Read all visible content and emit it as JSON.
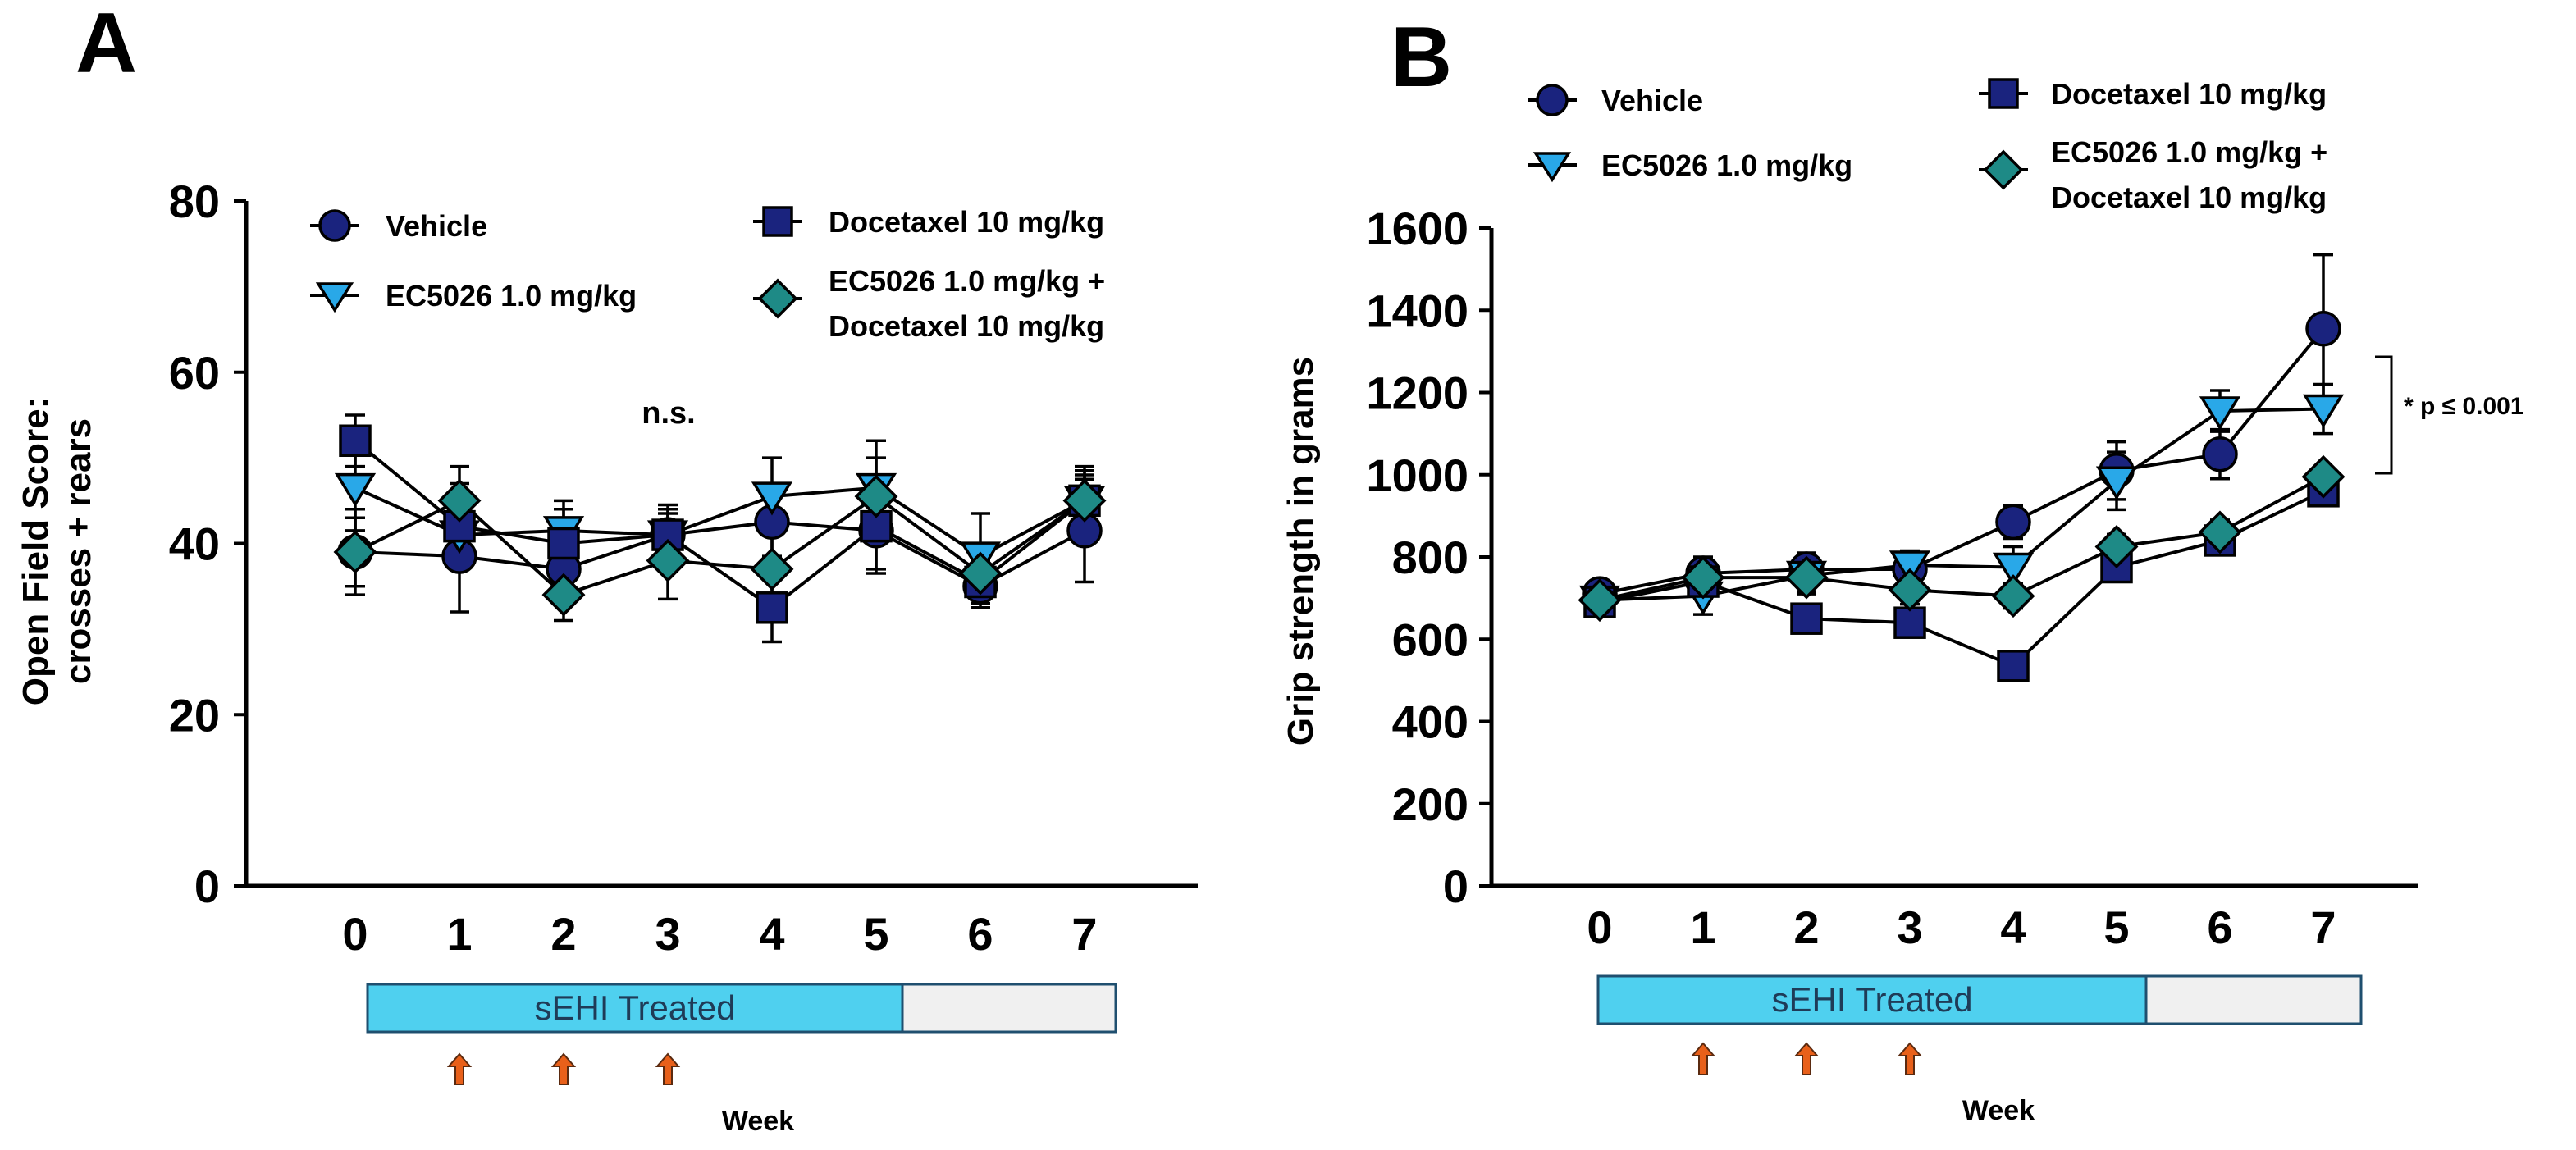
{
  "colors": {
    "vehicle": "#1a237e",
    "ec5026": "#29a8e8",
    "docetaxel": "#1a237e",
    "combo": "#1e8a86",
    "treated_bar": "#4fd0ef",
    "untreated_bar": "#f0f0f0",
    "arrow": "#e8601a"
  },
  "legend": {
    "vehicle": "Vehicle",
    "ec5026": "EC5026 1.0 mg/kg",
    "docetaxel": "Docetaxel 10 mg/kg",
    "combo_line1": "EC5026 1.0 mg/kg +",
    "combo_line2": "Docetaxel 10 mg/kg"
  },
  "timeline": {
    "treated_label": "sEHI Treated",
    "week_label": "Week",
    "treated_until_week": 5,
    "dose_weeks": [
      1,
      2,
      3
    ]
  },
  "chart_data": [
    {
      "panel": "A",
      "type": "line",
      "ylabel_line1": "Open Field Score:",
      "ylabel_line2": "crosses + rears",
      "xlabel": "Week",
      "annotation": "n.s.",
      "annotation_x": 3,
      "annotation_y": 56,
      "x": [
        0,
        1,
        2,
        3,
        4,
        5,
        6,
        7
      ],
      "ylim": [
        0,
        80
      ],
      "yticks": [
        0,
        20,
        40,
        60,
        80
      ],
      "series": [
        {
          "key": "vehicle",
          "marker": "circle",
          "values": [
            39,
            38.5,
            37,
            41,
            42.5,
            41.5,
            35,
            41.5
          ],
          "errors": [
            4,
            6.5,
            4,
            3.5,
            4,
            5,
            2.5,
            6
          ]
        },
        {
          "key": "ec5026",
          "marker": "triangle",
          "values": [
            46.5,
            41,
            41.5,
            41,
            45.5,
            46.5,
            38.5,
            45
          ],
          "errors": [
            5,
            4,
            3.5,
            2.5,
            4.5,
            5.5,
            5,
            4
          ]
        },
        {
          "key": "docetaxel",
          "marker": "square",
          "values": [
            52,
            42,
            40,
            41,
            32.5,
            42,
            35.5,
            45
          ],
          "errors": [
            3,
            5,
            4,
            3,
            4,
            5,
            2.5,
            3.5
          ]
        },
        {
          "key": "combo",
          "marker": "diamond",
          "values": [
            39,
            45,
            34,
            38,
            37,
            45.5,
            36.5,
            45
          ],
          "errors": [
            5,
            4,
            3,
            4.5,
            4,
            4.5,
            2.5,
            3
          ]
        }
      ]
    },
    {
      "panel": "B",
      "type": "line",
      "ylabel": "Grip strength in grams",
      "xlabel": "Week",
      "annotation": "* p ≤ 0.001",
      "x": [
        0,
        1,
        2,
        3,
        4,
        5,
        6,
        7
      ],
      "ylim": [
        0,
        1600
      ],
      "yticks": [
        0,
        200,
        400,
        600,
        800,
        1000,
        1200,
        1400,
        1600
      ],
      "series": [
        {
          "key": "vehicle",
          "marker": "circle",
          "values": [
            710,
            760,
            770,
            770,
            885,
            1010,
            1050,
            1355
          ],
          "errors": [
            20,
            40,
            40,
            30,
            40,
            70,
            60,
            180
          ]
        },
        {
          "key": "ec5026",
          "marker": "triangle",
          "values": [
            695,
            705,
            755,
            780,
            775,
            985,
            1155,
            1160
          ],
          "errors": [
            20,
            45,
            45,
            35,
            50,
            70,
            50,
            60
          ]
        },
        {
          "key": "docetaxel",
          "marker": "square",
          "values": [
            690,
            740,
            650,
            640,
            535,
            775,
            840,
            960
          ],
          "errors": [
            20,
            40,
            30,
            30,
            20,
            30,
            30,
            25
          ]
        },
        {
          "key": "combo",
          "marker": "diamond",
          "values": [
            695,
            750,
            750,
            720,
            705,
            825,
            860,
            995
          ],
          "errors": [
            15,
            40,
            35,
            35,
            30,
            30,
            30,
            25
          ]
        }
      ]
    }
  ]
}
